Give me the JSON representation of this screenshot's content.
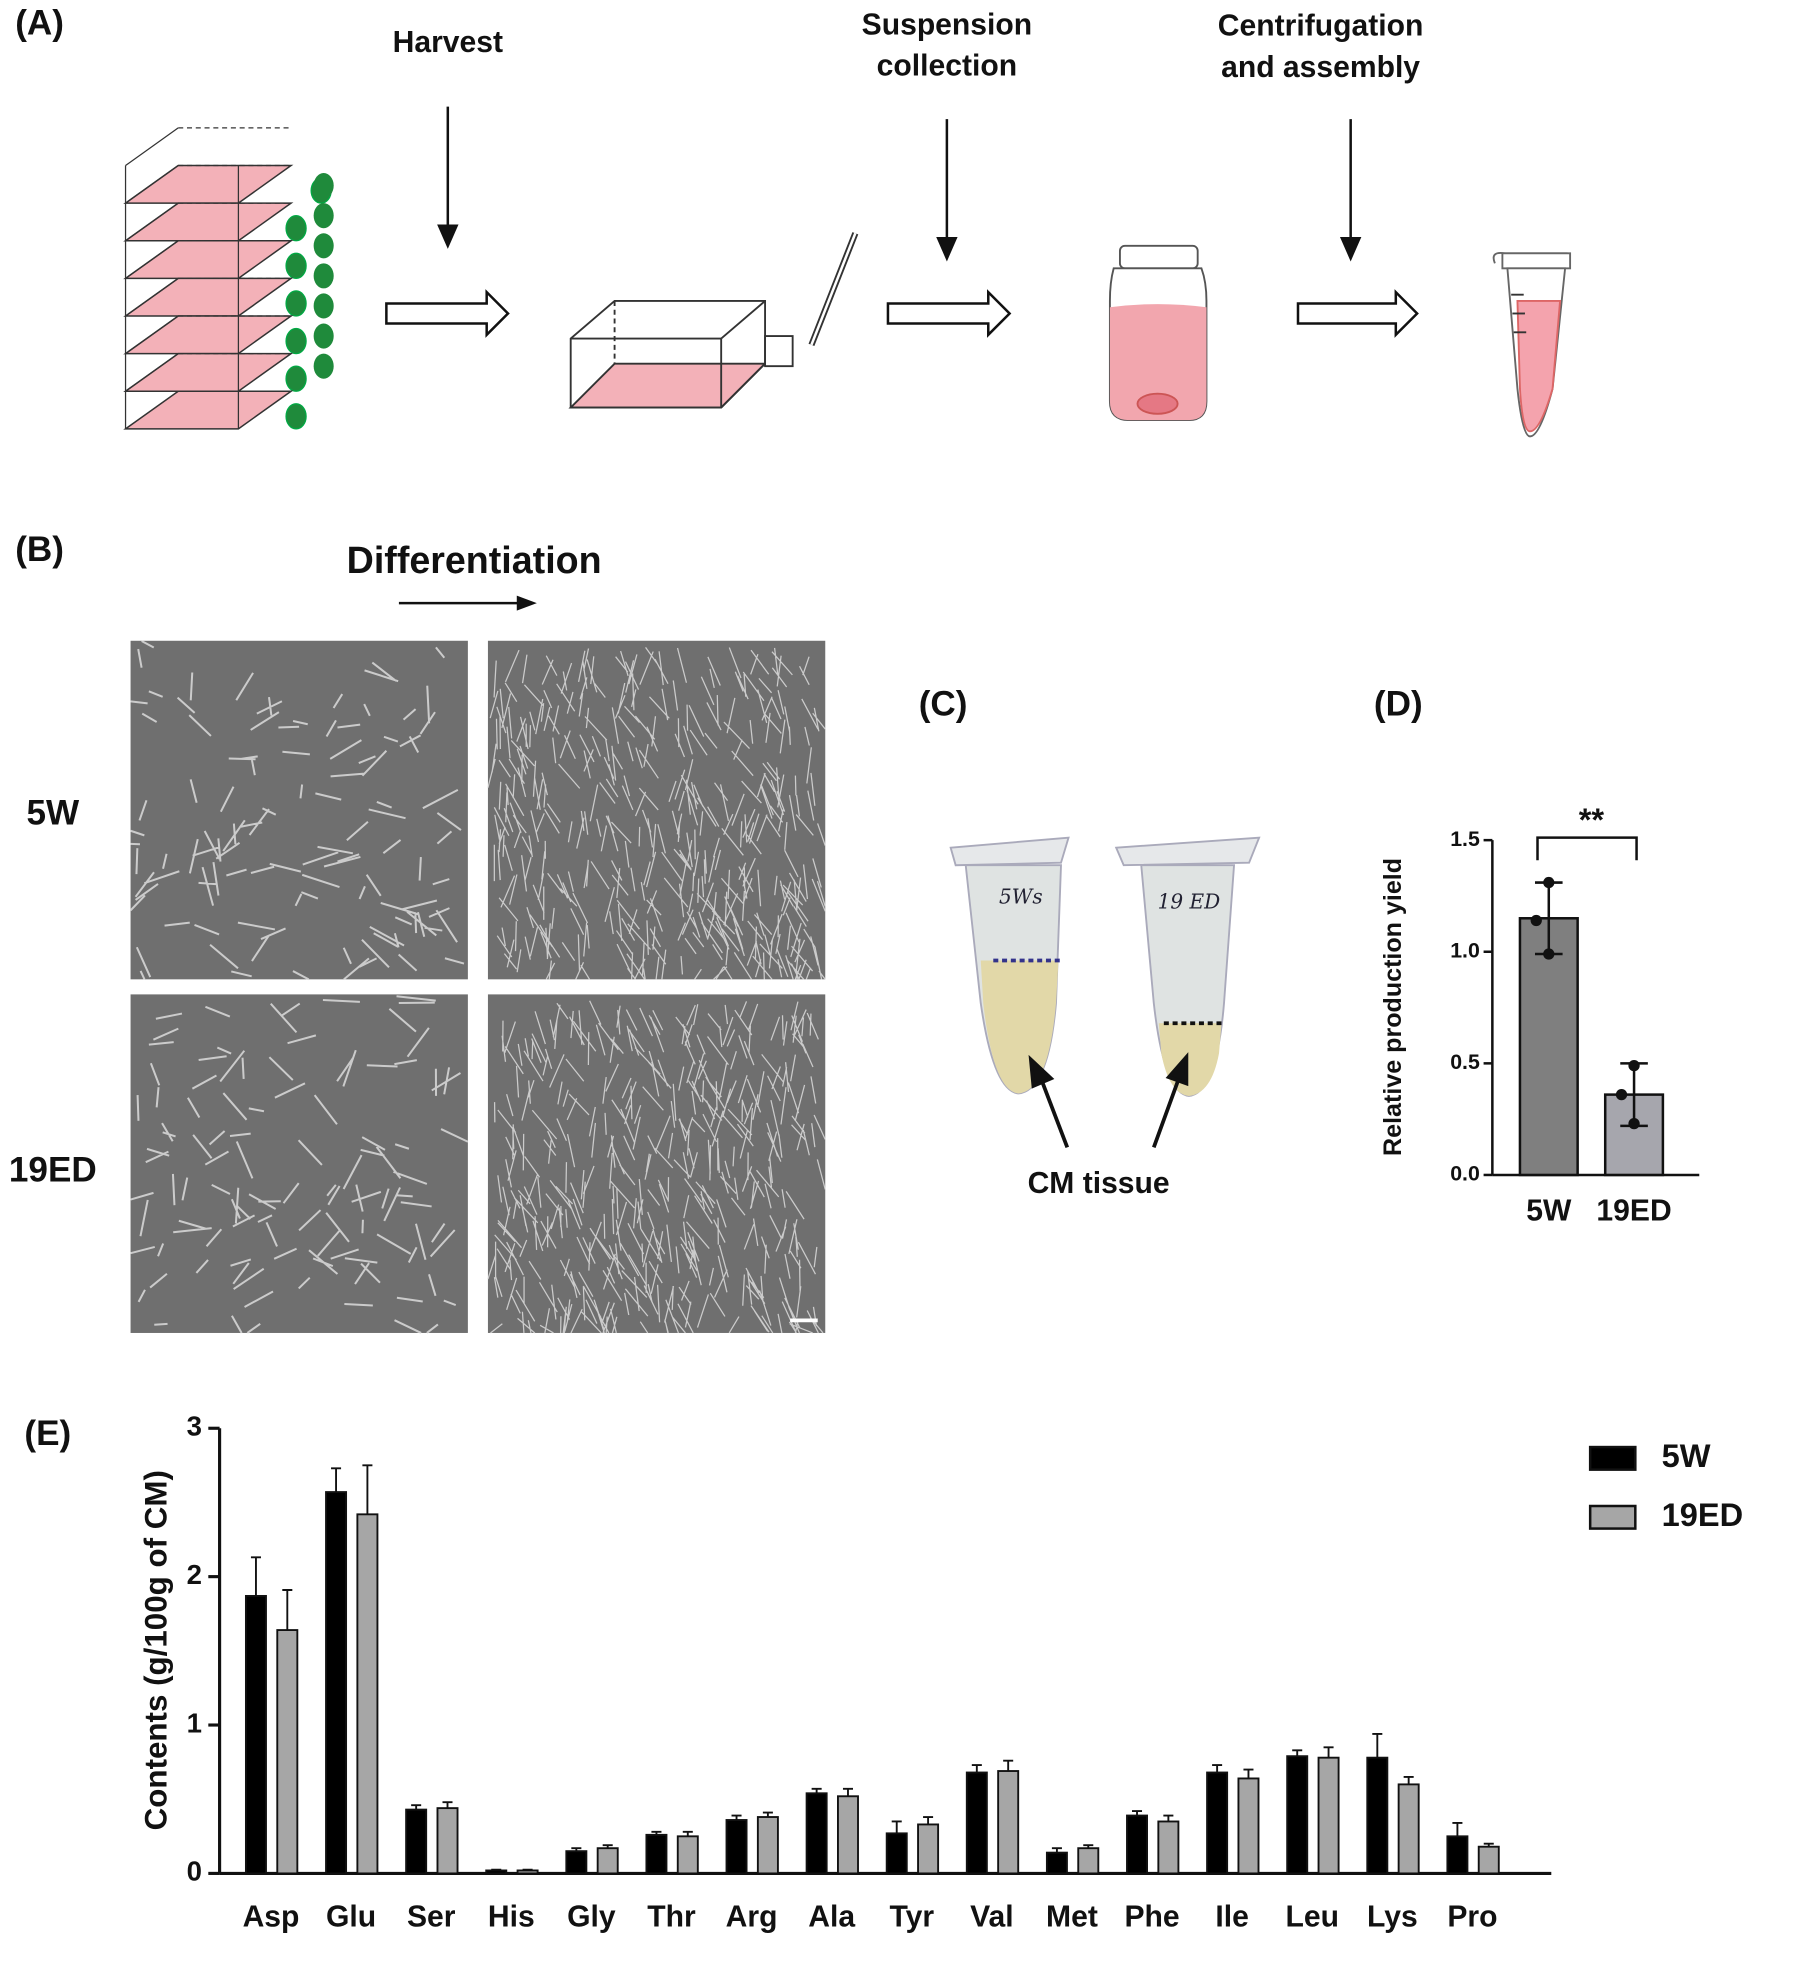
{
  "panel_a": {
    "label": "(A)",
    "harvest": "Harvest",
    "suspension": [
      "Suspension",
      "collection"
    ],
    "centrifugation": [
      "Centrifugation",
      "and assembly"
    ]
  },
  "panel_b": {
    "label": "(B)",
    "arrow": "Differentiation",
    "rows": [
      "5W",
      "19ED"
    ]
  },
  "panel_c": {
    "label": "(C)",
    "tube_labels": [
      "5Ws",
      "19 ED"
    ],
    "annotation": "CM tissue"
  },
  "chart_data": [
    {
      "panel_label": "(D)",
      "type": "bar",
      "categories": [
        "5W",
        "19ED"
      ],
      "values": [
        1.15,
        0.36
      ],
      "errors": [
        0.16,
        0.14
      ],
      "points": [
        [
          1.31,
          1.14,
          0.99
        ],
        [
          0.49,
          0.36,
          0.23
        ]
      ],
      "colors": [
        "#7f7f7f",
        "#a6a6ad"
      ],
      "y_label": "Relative production yield",
      "ylim": [
        0,
        1.5
      ],
      "yticks": [
        {
          "value": 0,
          "label": "0.0"
        },
        {
          "value": 0.5,
          "label": "0.5"
        },
        {
          "value": 1,
          "label": "1.0"
        },
        {
          "value": 1.5,
          "label": "1.5"
        }
      ],
      "annotation": "**"
    },
    {
      "panel_label": "(E)",
      "type": "grouped_bar",
      "categories": [
        "Asp",
        "Glu",
        "Ser",
        "His",
        "Gly",
        "Thr",
        "Arg",
        "Ala",
        "Tyr",
        "Val",
        "Met",
        "Phe",
        "Ile",
        "Leu",
        "Lys",
        "Pro"
      ],
      "series": [
        {
          "name": "5W",
          "color": "#000000",
          "values": [
            1.87,
            2.57,
            0.43,
            0.02,
            0.15,
            0.26,
            0.36,
            0.54,
            0.27,
            0.68,
            0.14,
            0.39,
            0.68,
            0.79,
            0.78,
            0.25
          ],
          "errors": [
            0.26,
            0.16,
            0.03,
            0.005,
            0.02,
            0.02,
            0.03,
            0.03,
            0.08,
            0.05,
            0.03,
            0.03,
            0.05,
            0.04,
            0.16,
            0.09
          ]
        },
        {
          "name": "19ED",
          "color": "#a6a6a6",
          "values": [
            1.64,
            2.42,
            0.44,
            0.02,
            0.17,
            0.25,
            0.38,
            0.52,
            0.33,
            0.69,
            0.17,
            0.35,
            0.64,
            0.78,
            0.6,
            0.18
          ],
          "errors": [
            0.27,
            0.33,
            0.04,
            0.005,
            0.02,
            0.03,
            0.03,
            0.05,
            0.05,
            0.07,
            0.02,
            0.04,
            0.06,
            0.07,
            0.05,
            0.02
          ]
        }
      ],
      "y_label": "Contents (g/100g of CM)",
      "ylim": [
        0,
        3
      ],
      "yticks": [
        0,
        1,
        2,
        3
      ],
      "legend": "upper right"
    }
  ]
}
